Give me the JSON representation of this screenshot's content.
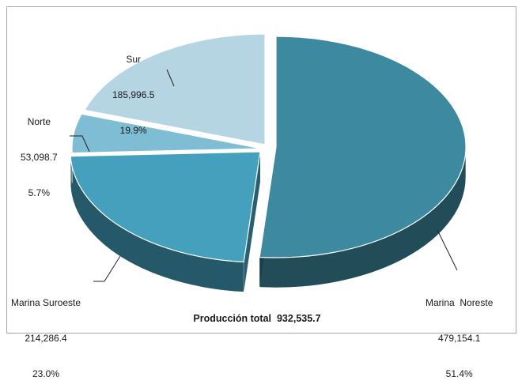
{
  "chart_data": {
    "type": "pie",
    "style": "3d-exploded",
    "total_label": "Producción total",
    "total_value": "932,535.7",
    "slices": [
      {
        "name": "Marina  Noreste",
        "value": 479154.1,
        "value_label": "479,154.1",
        "percent_label": "51.4%",
        "color": "#3d8aa0"
      },
      {
        "name": "Marina Suroeste",
        "value": 214286.4,
        "value_label": "214,286.4",
        "percent_label": "23.0%",
        "color": "#44a0bd"
      },
      {
        "name": "Norte",
        "value": 53098.7,
        "value_label": "53,098.7",
        "percent_label": "5.7%",
        "color": "#7ebdd3"
      },
      {
        "name": "Sur",
        "value": 185996.5,
        "value_label": "185,996.5",
        "percent_label": "19.9%",
        "color": "#b6d5e2"
      }
    ]
  }
}
